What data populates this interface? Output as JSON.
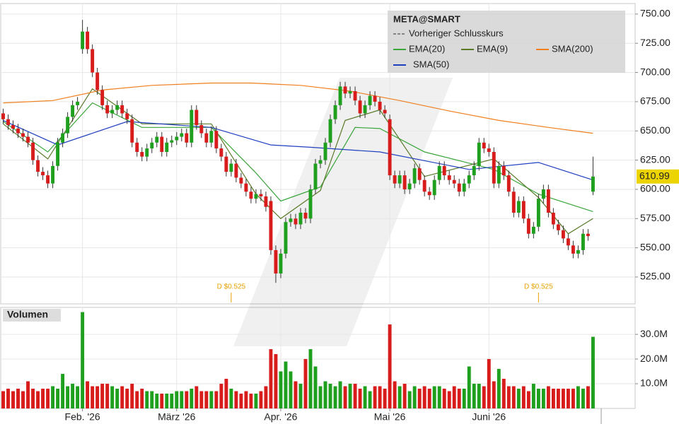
{
  "chart_data": {
    "type": "candlestick",
    "title": "META@SMART",
    "prev_close_label": "Vorheriger Schlusskurs",
    "up_color": "#1ea01e",
    "down_color": "#d81c1c",
    "grid": true,
    "ylim": [
      502,
      759
    ],
    "yticks": [
      {
        "value": 525,
        "label": "525.00"
      },
      {
        "value": 550,
        "label": "550.00"
      },
      {
        "value": 575,
        "label": "575.00"
      },
      {
        "value": 600,
        "label": "600.00"
      },
      {
        "value": 625,
        "label": "625.00"
      },
      {
        "value": 650,
        "label": "650.00"
      },
      {
        "value": 675,
        "label": "675.00"
      },
      {
        "value": 700,
        "label": "700.00"
      },
      {
        "value": 725,
        "label": "725.00"
      },
      {
        "value": 750,
        "label": "750.00"
      }
    ],
    "xlim": [
      -0.5,
      127.5
    ],
    "xticks": [
      {
        "value": 16,
        "label": "Feb. '26"
      },
      {
        "value": 35,
        "label": "März '26"
      },
      {
        "value": 56,
        "label": "Apr. '26"
      },
      {
        "value": 78,
        "label": "Mai '26"
      },
      {
        "value": 98,
        "label": "Juni '26"
      }
    ],
    "open": [
      665,
      660,
      655,
      652,
      648,
      645,
      640,
      625,
      615,
      612,
      605,
      620,
      640,
      648,
      662,
      672,
      720,
      735,
      720,
      700,
      685,
      672,
      665,
      668,
      672,
      665,
      660,
      640,
      632,
      628,
      635,
      640,
      645,
      632,
      640,
      642,
      645,
      648,
      640,
      668,
      655,
      648,
      640,
      650,
      635,
      628,
      615,
      622,
      610,
      605,
      598,
      592,
      596,
      594,
      590,
      548,
      528,
      545,
      572,
      575,
      570,
      580,
      575,
      600,
      622,
      625,
      640,
      660,
      672,
      688,
      682,
      684,
      676,
      665,
      672,
      680,
      675,
      668,
      660,
      612,
      605,
      612,
      600,
      605,
      618,
      608,
      598,
      595,
      608,
      620,
      612,
      608,
      605,
      598,
      605,
      612,
      620,
      640,
      635,
      632,
      605,
      620,
      612,
      598,
      580,
      590,
      575,
      562,
      568,
      592,
      600,
      580,
      570,
      565,
      558,
      552,
      545,
      548,
      562,
      598
    ],
    "high": [
      669,
      664,
      659,
      656,
      652,
      649,
      644,
      629,
      619,
      616,
      624,
      644,
      652,
      666,
      676,
      679,
      745,
      739,
      724,
      704,
      689,
      676,
      672,
      676,
      676,
      669,
      664,
      644,
      636,
      639,
      644,
      649,
      649,
      644,
      646,
      649,
      652,
      652,
      672,
      672,
      659,
      652,
      654,
      654,
      639,
      632,
      626,
      626,
      614,
      609,
      602,
      600,
      600,
      598,
      594,
      552,
      549,
      576,
      579,
      579,
      584,
      584,
      604,
      626,
      629,
      644,
      664,
      676,
      692,
      692,
      688,
      688,
      680,
      676,
      684,
      684,
      679,
      672,
      664,
      616,
      616,
      616,
      609,
      622,
      622,
      612,
      602,
      612,
      624,
      624,
      616,
      612,
      609,
      609,
      616,
      624,
      644,
      644,
      639,
      636,
      624,
      624,
      616,
      602,
      594,
      594,
      579,
      572,
      596,
      604,
      604,
      584,
      574,
      569,
      562,
      556,
      552,
      566,
      566,
      628
    ],
    "low": [
      656,
      651,
      648,
      644,
      641,
      636,
      621,
      611,
      608,
      601,
      601,
      616,
      636,
      644,
      658,
      668,
      716,
      716,
      696,
      681,
      668,
      661,
      661,
      664,
      661,
      656,
      636,
      628,
      624,
      624,
      631,
      636,
      628,
      628,
      636,
      638,
      641,
      636,
      636,
      651,
      644,
      636,
      636,
      631,
      624,
      611,
      611,
      606,
      601,
      594,
      588,
      588,
      590,
      581,
      544,
      520,
      524,
      541,
      568,
      566,
      566,
      571,
      571,
      596,
      618,
      621,
      636,
      656,
      668,
      678,
      678,
      672,
      661,
      661,
      668,
      671,
      664,
      661,
      608,
      601,
      601,
      596,
      596,
      601,
      604,
      594,
      591,
      591,
      604,
      608,
      604,
      601,
      594,
      594,
      601,
      608,
      616,
      631,
      628,
      601,
      601,
      608,
      594,
      576,
      576,
      571,
      558,
      558,
      564,
      588,
      576,
      566,
      561,
      554,
      548,
      541,
      541,
      544,
      556,
      595
    ],
    "close": [
      660,
      655,
      652,
      648,
      645,
      640,
      625,
      615,
      612,
      605,
      620,
      640,
      648,
      662,
      672,
      675,
      735,
      720,
      700,
      685,
      672,
      665,
      668,
      672,
      665,
      660,
      640,
      632,
      628,
      635,
      640,
      645,
      632,
      640,
      642,
      645,
      648,
      640,
      668,
      655,
      648,
      640,
      650,
      635,
      628,
      615,
      622,
      610,
      605,
      598,
      592,
      596,
      594,
      585,
      548,
      528,
      545,
      572,
      575,
      570,
      580,
      575,
      600,
      622,
      625,
      640,
      660,
      672,
      688,
      682,
      684,
      676,
      665,
      672,
      680,
      675,
      668,
      665,
      612,
      605,
      612,
      600,
      605,
      618,
      608,
      598,
      595,
      608,
      620,
      612,
      608,
      605,
      598,
      605,
      612,
      620,
      640,
      635,
      632,
      605,
      620,
      612,
      598,
      580,
      590,
      575,
      562,
      568,
      592,
      600,
      580,
      570,
      565,
      558,
      552,
      545,
      548,
      562,
      560,
      610.99
    ],
    "series": [
      {
        "name": "EMA(20)",
        "color": "#3aa53a",
        "x": [
          0,
          9,
          18,
          28,
          42,
          51,
          56,
          64,
          71,
          76,
          85,
          99,
          108,
          119
        ],
        "values": [
          658,
          632,
          674,
          653,
          653,
          614,
          590,
          602,
          653,
          652,
          632,
          617,
          596,
          581
        ]
      },
      {
        "name": "EMA(9)",
        "color": "#5a7a2a",
        "x": [
          0,
          9,
          18,
          28,
          42,
          51,
          56,
          64,
          69,
          76,
          85,
          99,
          108,
          114,
          119
        ],
        "values": [
          656,
          626,
          686,
          656,
          656,
          596,
          575,
          599,
          659,
          668,
          611,
          626,
          593,
          562,
          575
        ]
      },
      {
        "name": "SMA(200)",
        "color": "#f07f1e",
        "x": [
          0,
          10,
          20,
          30,
          42,
          50,
          60,
          70,
          80,
          90,
          100,
          110,
          119
        ],
        "values": [
          674,
          676,
          685,
          689,
          691,
          691,
          689,
          684,
          676,
          667,
          659,
          653,
          648
        ]
      },
      {
        "name": "SMA(50)",
        "color": "#1f3fbf",
        "x": [
          0,
          11,
          25,
          42,
          54,
          62,
          76,
          94,
          108,
          119
        ],
        "values": [
          659,
          638,
          658,
          653,
          638,
          636,
          632,
          617,
          623,
          608
        ]
      }
    ],
    "annotations": [
      {
        "text": "D $0.525",
        "x": 46
      },
      {
        "text": "D $0.525",
        "x": 108
      }
    ],
    "volume": {
      "title": "Volumen",
      "ylim": [
        0,
        40.9
      ],
      "yticks": [
        {
          "value": 10,
          "label": "10.0M"
        },
        {
          "value": 20,
          "label": "20.0M"
        },
        {
          "value": 30,
          "label": "30.0M"
        }
      ],
      "values": [
        7,
        8,
        7,
        8,
        7,
        11,
        8,
        7,
        8,
        8,
        9,
        8,
        14,
        9,
        10,
        9,
        39,
        11,
        9,
        9,
        10,
        10,
        9,
        8,
        9,
        8,
        10,
        7,
        8,
        7,
        7,
        6,
        6,
        6,
        6,
        7,
        7,
        7,
        8,
        9,
        7,
        7,
        7,
        7,
        10,
        12,
        8,
        7,
        6,
        7,
        6,
        6,
        7,
        9,
        24,
        22,
        15,
        19,
        15,
        11,
        10,
        20,
        24,
        17,
        9,
        11,
        10,
        9,
        11,
        9,
        10,
        10,
        8,
        9,
        7,
        9,
        9,
        8,
        34,
        11,
        9,
        10,
        7,
        9,
        8,
        9,
        8,
        9,
        9,
        8,
        7,
        9,
        8,
        8,
        17,
        10,
        10,
        9,
        20,
        11,
        16,
        12,
        9,
        9,
        8,
        9,
        7,
        10,
        8,
        8,
        9,
        8,
        8,
        8,
        8,
        8,
        9,
        8,
        9,
        29
      ]
    }
  }
}
